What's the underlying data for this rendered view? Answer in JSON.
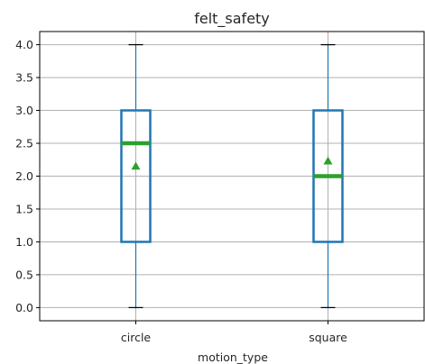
{
  "chart_data": {
    "type": "box",
    "title": "felt_safety",
    "xlabel": "motion_type",
    "ylabel": "",
    "ylim": [
      -0.2,
      4.2
    ],
    "yticks": [
      0.0,
      0.5,
      1.0,
      1.5,
      2.0,
      2.5,
      3.0,
      3.5,
      4.0
    ],
    "ytick_labels": [
      "0.0",
      "0.5",
      "1.0",
      "1.5",
      "2.0",
      "2.5",
      "3.0",
      "3.5",
      "4.0"
    ],
    "grid": true,
    "categories": [
      "circle",
      "square"
    ],
    "boxes": [
      {
        "category": "circle",
        "min": 0.0,
        "q1": 1.0,
        "median": 2.5,
        "q3": 3.0,
        "max": 4.0,
        "mean": 2.15
      },
      {
        "category": "square",
        "min": 0.0,
        "q1": 1.0,
        "median": 2.0,
        "q3": 3.0,
        "max": 4.0,
        "mean": 2.23
      }
    ],
    "colors": {
      "box": "#1f77b4",
      "median": "#2ca02c",
      "mean": "#2ca02c",
      "grid": "#b0b0b0"
    }
  }
}
